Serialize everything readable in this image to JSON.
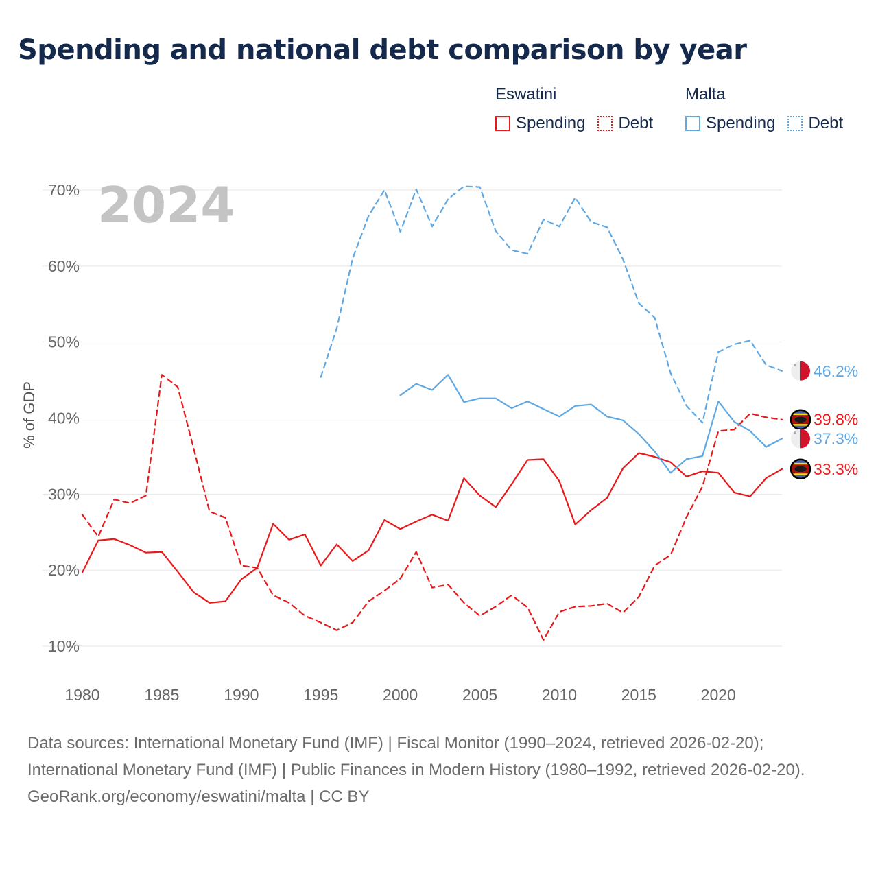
{
  "title": "Spending and national debt comparison by year",
  "legend": {
    "groups": [
      {
        "country": "Eswatini",
        "color": "#e8191b",
        "spending_label": "Spending",
        "debt_label": "Debt"
      },
      {
        "country": "Malta",
        "color": "#5fa8e3",
        "spending_label": "Spending",
        "debt_label": "Debt"
      }
    ]
  },
  "chart_data": {
    "type": "line",
    "title": "Spending and national debt comparison by year",
    "year_watermark": "2024",
    "ylabel": "% of GDP",
    "xlabel": "",
    "xlim": [
      1980,
      2024
    ],
    "ylim": [
      10,
      70
    ],
    "x_ticks": [
      "1980",
      "1985",
      "1990",
      "1995",
      "2000",
      "2005",
      "2010",
      "2015",
      "2020"
    ],
    "y_ticks": [
      "10%",
      "20%",
      "30%",
      "40%",
      "50%",
      "60%",
      "70%"
    ],
    "series": [
      {
        "name": "Eswatini Spending",
        "country": "Eswatini",
        "measure": "Spending",
        "color": "#e8191b",
        "dash": false,
        "end_label": "33.3%",
        "x": [
          1980,
          1981,
          1982,
          1983,
          1984,
          1985,
          1986,
          1987,
          1988,
          1989,
          1990,
          1991,
          1992,
          1993,
          1994,
          1995,
          1996,
          1997,
          1998,
          1999,
          2000,
          2001,
          2002,
          2003,
          2004,
          2005,
          2006,
          2007,
          2008,
          2009,
          2010,
          2011,
          2012,
          2013,
          2014,
          2015,
          2016,
          2017,
          2018,
          2019,
          2020,
          2021,
          2022,
          2023,
          2024
        ],
        "values": [
          19.7,
          23.9,
          24.1,
          23.3,
          22.3,
          22.4,
          19.8,
          17.1,
          15.7,
          15.9,
          18.8,
          20.3,
          26.1,
          24.0,
          24.7,
          20.6,
          23.4,
          21.2,
          22.6,
          26.6,
          25.4,
          26.4,
          27.3,
          26.5,
          32.1,
          29.8,
          28.3,
          31.3,
          34.5,
          34.6,
          31.7,
          26.0,
          27.9,
          29.5,
          33.4,
          35.4,
          34.9,
          34.2,
          32.3,
          33.0,
          32.8,
          30.2,
          29.7,
          32.1,
          33.3
        ]
      },
      {
        "name": "Eswatini Debt",
        "country": "Eswatini",
        "measure": "Debt",
        "color": "#e8191b",
        "dash": true,
        "end_label": "39.8%",
        "x": [
          1980,
          1981,
          1982,
          1983,
          1984,
          1985,
          1986,
          1987,
          1988,
          1989,
          1990,
          1991,
          1992,
          1993,
          1994,
          1995,
          1996,
          1997,
          1998,
          1999,
          2000,
          2001,
          2002,
          2003,
          2004,
          2005,
          2006,
          2007,
          2008,
          2009,
          2010,
          2011,
          2012,
          2013,
          2014,
          2015,
          2016,
          2017,
          2018,
          2019,
          2020,
          2021,
          2022,
          2023,
          2024
        ],
        "values": [
          27.3,
          24.4,
          29.3,
          28.8,
          29.8,
          45.7,
          44.1,
          36.0,
          27.7,
          26.9,
          20.6,
          20.3,
          16.7,
          15.7,
          14.0,
          13.1,
          12.1,
          13.1,
          15.9,
          17.3,
          18.9,
          22.4,
          17.7,
          18.1,
          15.7,
          14.0,
          15.2,
          16.7,
          15.1,
          10.8,
          14.5,
          15.2,
          15.3,
          15.6,
          14.4,
          16.5,
          20.6,
          22.0,
          27.0,
          31.0,
          38.3,
          38.5,
          40.6,
          40.1,
          39.8
        ]
      },
      {
        "name": "Malta Spending",
        "country": "Malta",
        "measure": "Spending",
        "color": "#5fa8e3",
        "dash": false,
        "end_label": "37.3%",
        "x": [
          2000,
          2001,
          2002,
          2003,
          2004,
          2005,
          2006,
          2007,
          2008,
          2009,
          2010,
          2011,
          2012,
          2013,
          2014,
          2015,
          2016,
          2017,
          2018,
          2019,
          2020,
          2021,
          2022,
          2023,
          2024
        ],
        "values": [
          43.0,
          44.5,
          43.7,
          45.7,
          42.1,
          42.6,
          42.6,
          41.3,
          42.2,
          41.2,
          40.2,
          41.6,
          41.8,
          40.2,
          39.7,
          37.9,
          35.6,
          32.8,
          34.6,
          35.0,
          42.2,
          39.5,
          38.3,
          36.2,
          37.3
        ]
      },
      {
        "name": "Malta Debt",
        "country": "Malta",
        "measure": "Debt",
        "color": "#5fa8e3",
        "dash": true,
        "end_label": "46.2%",
        "x": [
          1995,
          1996,
          1997,
          1998,
          1999,
          2000,
          2001,
          2002,
          2003,
          2004,
          2005,
          2006,
          2007,
          2008,
          2009,
          2010,
          2011,
          2012,
          2013,
          2014,
          2015,
          2016,
          2017,
          2018,
          2019,
          2020,
          2021,
          2022,
          2023,
          2024
        ],
        "values": [
          45.4,
          51.8,
          61.0,
          66.6,
          70.0,
          64.5,
          70.1,
          65.2,
          68.8,
          70.5,
          70.4,
          64.6,
          62.1,
          61.6,
          66.1,
          65.2,
          69.0,
          65.8,
          65.1,
          60.9,
          55.1,
          53.2,
          45.9,
          41.6,
          39.4,
          48.7,
          49.7,
          50.2,
          47.0,
          46.2
        ]
      }
    ]
  },
  "sources": {
    "line1": "Data sources: International Monetary Fund (IMF) | Fiscal Monitor (1990–2024, retrieved 2026-02-20); International Monetary Fund (IMF) | Public Finances in Modern History (1980–1992, retrieved 2026-02-20).",
    "line2": "GeoRank.org/economy/eswatini/malta | CC BY"
  }
}
